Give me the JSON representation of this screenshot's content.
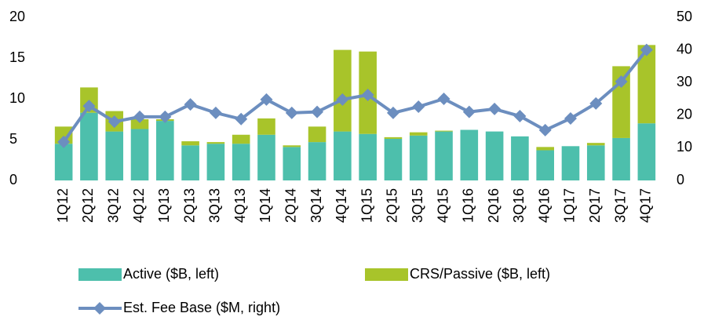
{
  "chart_data": {
    "type": "bar-line",
    "categories": [
      "1Q12",
      "2Q12",
      "3Q12",
      "4Q12",
      "1Q13",
      "2Q13",
      "3Q13",
      "4Q13",
      "1Q14",
      "2Q14",
      "3Q14",
      "4Q14",
      "1Q15",
      "2Q15",
      "3Q15",
      "4Q15",
      "1Q16",
      "2Q16",
      "3Q16",
      "4Q16",
      "1Q17",
      "2Q17",
      "3Q17",
      "4Q17"
    ],
    "series": [
      {
        "name": "Active ($B, left)",
        "color": "#4dbfac",
        "type": "bar",
        "values": [
          4.5,
          8.3,
          6.0,
          6.3,
          7.3,
          4.3,
          4.5,
          4.5,
          5.6,
          4.1,
          4.7,
          6.0,
          5.7,
          5.1,
          5.5,
          6.0,
          6.2,
          6.0,
          5.4,
          3.7,
          4.2,
          4.3,
          5.2,
          7.0
        ]
      },
      {
        "name": "CRS/Passive ($B, left)",
        "color": "#a8c42a",
        "type": "bar",
        "values": [
          2.1,
          3.1,
          2.5,
          1.2,
          0.2,
          0.5,
          0.2,
          1.1,
          2.0,
          0.2,
          1.9,
          10.0,
          10.1,
          0.2,
          0.4,
          0.1,
          0.0,
          0.0,
          0.0,
          0.4,
          0.0,
          0.3,
          8.8,
          9.6
        ]
      },
      {
        "name": "Est. Fee Base ($M, right)",
        "color": "#6c8ebf",
        "type": "line",
        "axis": "y2",
        "values": [
          11.8,
          22.8,
          18.0,
          19.5,
          19.5,
          23.3,
          20.7,
          18.8,
          24.8,
          20.7,
          21.0,
          24.8,
          26.2,
          20.7,
          22.6,
          25.0,
          21.0,
          21.9,
          19.7,
          15.4,
          19.0,
          23.6,
          30.3,
          40.0
        ]
      }
    ],
    "ylim": [
      0,
      20
    ],
    "yticks": [
      0,
      5,
      10,
      15,
      20
    ],
    "y2lim": [
      0,
      50
    ],
    "y2ticks": [
      0,
      10,
      20,
      30,
      40,
      50
    ]
  }
}
